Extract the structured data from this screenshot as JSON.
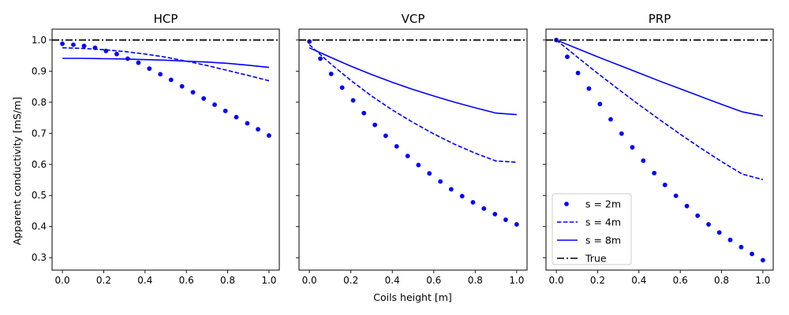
{
  "figure": {
    "ylabel": "Apparent conductivity [mS/m]",
    "xlabel": "Coils height [m]"
  },
  "chart_data": [
    {
      "type": "line",
      "title": "HCP",
      "xlim": [
        -0.05,
        1.05
      ],
      "ylim": [
        0.26,
        1.035
      ],
      "xticks": [
        "0.0",
        "0.2",
        "0.4",
        "0.6",
        "0.8",
        "1.0"
      ],
      "yticks": [
        "0.3",
        "0.4",
        "0.5",
        "0.6",
        "0.7",
        "0.8",
        "0.9",
        "1.0"
      ],
      "series": [
        {
          "name": "s = 2m",
          "style": "dots",
          "color": "#0000ff",
          "x": [
            0.0,
            0.053,
            0.105,
            0.158,
            0.211,
            0.263,
            0.316,
            0.368,
            0.421,
            0.474,
            0.526,
            0.579,
            0.632,
            0.684,
            0.737,
            0.789,
            0.842,
            0.895,
            0.947,
            1.0
          ],
          "y": [
            0.988,
            0.985,
            0.981,
            0.975,
            0.965,
            0.955,
            0.94,
            0.927,
            0.908,
            0.89,
            0.872,
            0.851,
            0.832,
            0.812,
            0.792,
            0.772,
            0.752,
            0.732,
            0.713,
            0.693
          ]
        },
        {
          "name": "s = 4m",
          "style": "dashed",
          "color": "#0000ff",
          "x": [
            0.0,
            0.1,
            0.2,
            0.3,
            0.4,
            0.5,
            0.6,
            0.7,
            0.8,
            0.9,
            1.0
          ],
          "y": [
            0.975,
            0.973,
            0.969,
            0.963,
            0.955,
            0.945,
            0.932,
            0.918,
            0.902,
            0.886,
            0.869
          ]
        },
        {
          "name": "s = 8m",
          "style": "solid",
          "color": "#0000ff",
          "x": [
            0.0,
            0.1,
            0.2,
            0.3,
            0.4,
            0.5,
            0.6,
            0.7,
            0.8,
            0.9,
            1.0
          ],
          "y": [
            0.941,
            0.941,
            0.94,
            0.939,
            0.937,
            0.935,
            0.932,
            0.929,
            0.925,
            0.919,
            0.912
          ]
        },
        {
          "name": "True",
          "style": "dashdot",
          "color": "#000000",
          "x": [
            0.0,
            1.0
          ],
          "y": [
            1.0,
            1.0
          ]
        }
      ]
    },
    {
      "type": "line",
      "title": "VCP",
      "xlim": [
        -0.05,
        1.05
      ],
      "ylim": [
        0.26,
        1.035
      ],
      "xticks": [
        "0.0",
        "0.2",
        "0.4",
        "0.6",
        "0.8",
        "1.0"
      ],
      "yticks": [],
      "series": [
        {
          "name": "s = 2m",
          "style": "dots",
          "color": "#0000ff",
          "x": [
            0.0,
            0.053,
            0.105,
            0.158,
            0.211,
            0.263,
            0.316,
            0.368,
            0.421,
            0.474,
            0.526,
            0.579,
            0.632,
            0.684,
            0.737,
            0.789,
            0.842,
            0.895,
            0.947,
            1.0
          ],
          "y": [
            0.995,
            0.94,
            0.891,
            0.847,
            0.806,
            0.765,
            0.727,
            0.692,
            0.658,
            0.627,
            0.598,
            0.571,
            0.545,
            0.52,
            0.498,
            0.478,
            0.458,
            0.44,
            0.422,
            0.407
          ]
        },
        {
          "name": "s = 4m",
          "style": "dashed",
          "color": "#0000ff",
          "x": [
            0.0,
            0.1,
            0.2,
            0.3,
            0.4,
            0.5,
            0.6,
            0.7,
            0.8,
            0.9,
            1.0
          ],
          "y": [
            0.985,
            0.925,
            0.87,
            0.82,
            0.775,
            0.735,
            0.698,
            0.665,
            0.636,
            0.611,
            0.607
          ]
        },
        {
          "name": "s = 8m",
          "style": "solid",
          "color": "#0000ff",
          "x": [
            0.0,
            0.1,
            0.2,
            0.3,
            0.4,
            0.5,
            0.6,
            0.7,
            0.8,
            0.9,
            1.0
          ],
          "y": [
            0.975,
            0.945,
            0.916,
            0.889,
            0.864,
            0.841,
            0.82,
            0.8,
            0.782,
            0.765,
            0.76
          ]
        },
        {
          "name": "True",
          "style": "dashdot",
          "color": "#000000",
          "x": [
            0.0,
            1.0
          ],
          "y": [
            1.0,
            1.0
          ]
        }
      ]
    },
    {
      "type": "line",
      "title": "PRP",
      "xlim": [
        -0.05,
        1.05
      ],
      "ylim": [
        0.26,
        1.035
      ],
      "xticks": [
        "0.0",
        "0.2",
        "0.4",
        "0.6",
        "0.8",
        "1.0"
      ],
      "yticks": [],
      "legend": "lower-left",
      "series": [
        {
          "name": "s = 2m",
          "style": "dots",
          "color": "#0000ff",
          "x": [
            0.0,
            0.053,
            0.105,
            0.158,
            0.211,
            0.263,
            0.316,
            0.368,
            0.421,
            0.474,
            0.526,
            0.579,
            0.632,
            0.684,
            0.737,
            0.789,
            0.842,
            0.895,
            0.947,
            1.0
          ],
          "y": [
            1.0,
            0.946,
            0.894,
            0.844,
            0.794,
            0.745,
            0.699,
            0.655,
            0.612,
            0.572,
            0.534,
            0.499,
            0.466,
            0.435,
            0.407,
            0.381,
            0.357,
            0.334,
            0.312,
            0.292
          ]
        },
        {
          "name": "s = 4m",
          "style": "dashed",
          "color": "#0000ff",
          "x": [
            0.0,
            0.1,
            0.2,
            0.3,
            0.4,
            0.5,
            0.6,
            0.7,
            0.8,
            0.9,
            1.0
          ],
          "y": [
            1.0,
            0.946,
            0.893,
            0.842,
            0.792,
            0.744,
            0.697,
            0.652,
            0.609,
            0.569,
            0.551
          ]
        },
        {
          "name": "s = 8m",
          "style": "solid",
          "color": "#0000ff",
          "x": [
            0.0,
            0.1,
            0.2,
            0.3,
            0.4,
            0.5,
            0.6,
            0.7,
            0.8,
            0.9,
            1.0
          ],
          "y": [
            1.0,
            0.973,
            0.946,
            0.92,
            0.894,
            0.868,
            0.843,
            0.818,
            0.793,
            0.769,
            0.756
          ]
        },
        {
          "name": "True",
          "style": "dashdot",
          "color": "#000000",
          "x": [
            0.0,
            1.0
          ],
          "y": [
            1.0,
            1.0
          ]
        }
      ]
    }
  ]
}
